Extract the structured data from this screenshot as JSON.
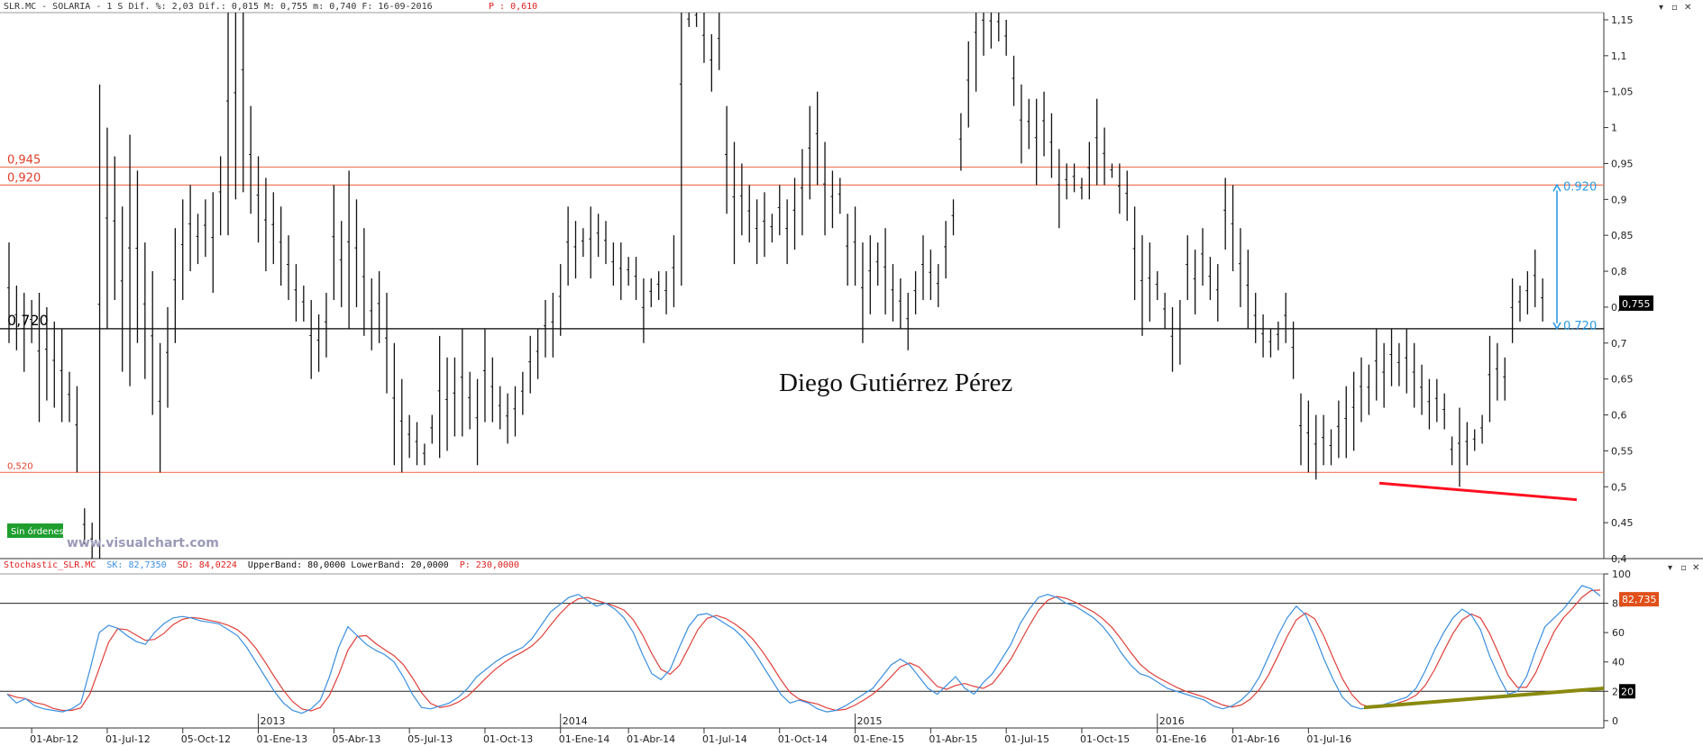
{
  "header": {
    "price_info": "SLR.MC - SOLARIA -  1 S Dif. %: 2,03 Dif.: 0,015 M: 0,755 m: 0,740 F: 16-09-2016",
    "p_value": "P : 0,610"
  },
  "stoch_header": {
    "name": "Stochastic_SLR.MC",
    "sk": "SK: 82,7350",
    "sd": "SD: 84,0224",
    "bands": "UpperBand: 80,0000 LowerBand: 20,0000",
    "p": "P: 230,0000"
  },
  "watermark": "Diego Gutiérrez Pérez",
  "brand": "www.visualchart.com",
  "badge": "Sin órdenes",
  "colors": {
    "candle": "#111111",
    "hline_orange": "#f07a5a",
    "hline_black": "#000000",
    "arrow_blue": "#2b9be6",
    "divergence_red": "#ff1020",
    "divergence_olive": "#8a8a10",
    "sk_line": "#3a8fe0",
    "sd_line": "#e0403a",
    "badge_bg": "#1f9e2f",
    "price_tag_bg": "#000000",
    "stoch_tag_bg": "#e0501a"
  },
  "chart_data": [
    {
      "type": "ohlc",
      "ylim": [
        0.4,
        1.16
      ],
      "yticks": [
        "1,15",
        "1,1",
        "1,05",
        "1",
        "0,95",
        "0,9",
        "0,85",
        "0,8",
        "0,75",
        "0,7",
        "0,65",
        "0,6",
        "0,55",
        "0,5",
        "0,45",
        "0,4"
      ],
      "ytick_values": [
        1.15,
        1.1,
        1.05,
        1.0,
        0.95,
        0.9,
        0.85,
        0.8,
        0.75,
        0.7,
        0.65,
        0.6,
        0.55,
        0.5,
        0.45,
        0.4
      ],
      "last_price_label": "0,755",
      "last_price": 0.755,
      "levels": [
        {
          "label": "0,945",
          "value": 0.945,
          "color": "orange"
        },
        {
          "label": "0,920",
          "value": 0.92,
          "color": "orange"
        },
        {
          "label": "0,720",
          "value": 0.72,
          "color": "black"
        },
        {
          "label": "0,520",
          "value": 0.52,
          "color": "orange"
        }
      ],
      "arrow": {
        "from": 0.72,
        "to": 0.92,
        "label_top": "0.920",
        "label_bottom": "0.720"
      },
      "divergence": {
        "from": 0.505,
        "to": 0.482
      },
      "year_labels": [
        {
          "label": "2013",
          "index": 33
        },
        {
          "label": "2014",
          "index": 73
        },
        {
          "label": "2015",
          "index": 112
        },
        {
          "label": "2016",
          "index": 152
        }
      ],
      "xticks": [
        {
          "label": "01-Abr-12",
          "index": 3
        },
        {
          "label": "01-Jul-12",
          "index": 13
        },
        {
          "label": "05-Oct-12",
          "index": 23
        },
        {
          "label": "01-Ene-13",
          "index": 33
        },
        {
          "label": "05-Abr-13",
          "index": 43
        },
        {
          "label": "05-Jul-13",
          "index": 53
        },
        {
          "label": "01-Oct-13",
          "index": 63
        },
        {
          "label": "01-Ene-14",
          "index": 73
        },
        {
          "label": "01-Abr-14",
          "index": 82
        },
        {
          "label": "01-Jul-14",
          "index": 92
        },
        {
          "label": "01-Oct-14",
          "index": 102
        },
        {
          "label": "01-Ene-15",
          "index": 112
        },
        {
          "label": "01-Abr-15",
          "index": 122
        },
        {
          "label": "01-Jul-15",
          "index": 132
        },
        {
          "label": "01-Oct-15",
          "index": 142
        },
        {
          "label": "01-Ene-16",
          "index": 152
        },
        {
          "label": "01-Abr-16",
          "index": 162
        },
        {
          "label": "01-Jul-16",
          "index": 172
        }
      ],
      "bars": [
        [
          0.84,
          0.7
        ],
        [
          0.78,
          0.69
        ],
        [
          0.77,
          0.66
        ],
        [
          0.76,
          0.7
        ],
        [
          0.77,
          0.59
        ],
        [
          0.75,
          0.62
        ],
        [
          0.73,
          0.61
        ],
        [
          0.72,
          0.59
        ],
        [
          0.66,
          0.59
        ],
        [
          0.64,
          0.52
        ],
        [
          0.47,
          0.42
        ],
        [
          0.45,
          0.4
        ],
        [
          1.06,
          0.38
        ],
        [
          1.0,
          0.72
        ],
        [
          0.96,
          0.76
        ],
        [
          0.89,
          0.66
        ],
        [
          0.99,
          0.64
        ],
        [
          0.94,
          0.7
        ],
        [
          0.84,
          0.65
        ],
        [
          0.8,
          0.6
        ],
        [
          0.7,
          0.52
        ],
        [
          0.75,
          0.61
        ],
        [
          0.86,
          0.7
        ],
        [
          0.9,
          0.76
        ],
        [
          0.92,
          0.8
        ],
        [
          0.88,
          0.81
        ],
        [
          0.9,
          0.82
        ],
        [
          0.91,
          0.77
        ],
        [
          0.96,
          0.85
        ],
        [
          1.19,
          0.85
        ],
        [
          1.17,
          0.9
        ],
        [
          1.22,
          0.91
        ],
        [
          1.03,
          0.88
        ],
        [
          0.96,
          0.84
        ],
        [
          0.93,
          0.8
        ],
        [
          0.91,
          0.81
        ],
        [
          0.89,
          0.78
        ],
        [
          0.85,
          0.76
        ],
        [
          0.81,
          0.73
        ],
        [
          0.78,
          0.73
        ],
        [
          0.76,
          0.65
        ],
        [
          0.74,
          0.66
        ],
        [
          0.77,
          0.68
        ],
        [
          0.92,
          0.76
        ],
        [
          0.87,
          0.75
        ],
        [
          0.94,
          0.72
        ],
        [
          0.9,
          0.75
        ],
        [
          0.86,
          0.71
        ],
        [
          0.79,
          0.69
        ],
        [
          0.8,
          0.7
        ],
        [
          0.77,
          0.63
        ],
        [
          0.7,
          0.53
        ],
        [
          0.65,
          0.52
        ],
        [
          0.6,
          0.54
        ],
        [
          0.59,
          0.53
        ],
        [
          0.56,
          0.53
        ],
        [
          0.6,
          0.56
        ],
        [
          0.71,
          0.54
        ],
        [
          0.68,
          0.55
        ],
        [
          0.68,
          0.57
        ],
        [
          0.72,
          0.57
        ],
        [
          0.66,
          0.58
        ],
        [
          0.65,
          0.53
        ],
        [
          0.72,
          0.59
        ],
        [
          0.68,
          0.59
        ],
        [
          0.64,
          0.58
        ],
        [
          0.63,
          0.56
        ],
        [
          0.64,
          0.57
        ],
        [
          0.66,
          0.6
        ],
        [
          0.71,
          0.63
        ],
        [
          0.72,
          0.65
        ],
        [
          0.76,
          0.68
        ],
        [
          0.77,
          0.68
        ],
        [
          0.81,
          0.71
        ],
        [
          0.89,
          0.78
        ],
        [
          0.87,
          0.79
        ],
        [
          0.86,
          0.82
        ],
        [
          0.89,
          0.79
        ],
        [
          0.88,
          0.82
        ],
        [
          0.87,
          0.81
        ],
        [
          0.84,
          0.78
        ],
        [
          0.84,
          0.76
        ],
        [
          0.82,
          0.78
        ],
        [
          0.82,
          0.76
        ],
        [
          0.79,
          0.7
        ],
        [
          0.79,
          0.75
        ],
        [
          0.8,
          0.76
        ],
        [
          0.8,
          0.74
        ],
        [
          0.85,
          0.75
        ],
        [
          1.29,
          0.78
        ]
      ],
      "bars2": [
        [
          1.16,
          1.14
        ],
        [
          1.17,
          1.14
        ],
        [
          1.16,
          1.09
        ],
        [
          1.13,
          1.05
        ],
        [
          1.16,
          1.08
        ],
        [
          1.03,
          0.88
        ],
        [
          0.98,
          0.81
        ],
        [
          0.95,
          0.85
        ],
        [
          0.92,
          0.84
        ],
        [
          0.9,
          0.81
        ],
        [
          0.91,
          0.82
        ],
        [
          0.88,
          0.84
        ],
        [
          0.92,
          0.85
        ],
        [
          0.9,
          0.81
        ],
        [
          0.93,
          0.83
        ],
        [
          0.97,
          0.85
        ],
        [
          1.03,
          0.9
        ],
        [
          1.05,
          0.92
        ],
        [
          0.98,
          0.85
        ],
        [
          0.94,
          0.86
        ],
        [
          0.93,
          0.88
        ],
        [
          0.88,
          0.78
        ],
        [
          0.89,
          0.78
        ],
        [
          0.84,
          0.7
        ],
        [
          0.85,
          0.74
        ],
        [
          0.84,
          0.78
        ],
        [
          0.86,
          0.74
        ],
        [
          0.81,
          0.73
        ],
        [
          0.79,
          0.72
        ],
        [
          0.77,
          0.69
        ],
        [
          0.8,
          0.74
        ],
        [
          0.85,
          0.76
        ],
        [
          0.83,
          0.76
        ],
        [
          0.81,
          0.75
        ],
        [
          0.87,
          0.79
        ],
        [
          0.9,
          0.85
        ],
        [
          1.02,
          0.94
        ],
        [
          1.12,
          1.0
        ],
        [
          1.2,
          1.05
        ],
        [
          1.19,
          1.1
        ],
        [
          1.18,
          1.11
        ],
        [
          1.17,
          1.12
        ],
        [
          1.15,
          1.1
        ],
        [
          1.1,
          1.03
        ],
        [
          1.06,
          0.95
        ],
        [
          1.04,
          0.97
        ],
        [
          1.04,
          0.92
        ],
        [
          1.05,
          0.96
        ],
        [
          1.02,
          0.93
        ],
        [
          0.97,
          0.86
        ],
        [
          0.95,
          0.9
        ],
        [
          0.95,
          0.91
        ],
        [
          0.93,
          0.9
        ],
        [
          0.98,
          0.9
        ],
        [
          1.04,
          0.92
        ],
        [
          1.0,
          0.92
        ],
        [
          0.95,
          0.93
        ],
        [
          0.95,
          0.88
        ],
        [
          0.94,
          0.87
        ],
        [
          0.89,
          0.76
        ],
        [
          0.85,
          0.71
        ],
        [
          0.84,
          0.73
        ],
        [
          0.8,
          0.76
        ],
        [
          0.77,
          0.72
        ],
        [
          0.75,
          0.66
        ],
        [
          0.76,
          0.67
        ],
        [
          0.85,
          0.76
        ],
        [
          0.83,
          0.74
        ],
        [
          0.86,
          0.78
        ],
        [
          0.82,
          0.76
        ],
        [
          0.81,
          0.73
        ],
        [
          0.93,
          0.83
        ],
        [
          0.92,
          0.8
        ],
        [
          0.86,
          0.75
        ],
        [
          0.83,
          0.72
        ],
        [
          0.77,
          0.7
        ],
        [
          0.74,
          0.68
        ],
        [
          0.72,
          0.68
        ],
        [
          0.73,
          0.69
        ],
        [
          0.77,
          0.7
        ],
        [
          0.73,
          0.65
        ],
        [
          0.63,
          0.53
        ],
        [
          0.62,
          0.52
        ],
        [
          0.6,
          0.51
        ],
        [
          0.6,
          0.53
        ],
        [
          0.58,
          0.53
        ],
        [
          0.62,
          0.54
        ],
        [
          0.64,
          0.54
        ],
        [
          0.66,
          0.55
        ],
        [
          0.68,
          0.59
        ],
        [
          0.67,
          0.6
        ],
        [
          0.72,
          0.62
        ],
        [
          0.7,
          0.61
        ],
        [
          0.72,
          0.64
        ],
        [
          0.7,
          0.64
        ],
        [
          0.72,
          0.63
        ],
        [
          0.7,
          0.61
        ],
        [
          0.67,
          0.6
        ],
        [
          0.65,
          0.58
        ],
        [
          0.65,
          0.59
        ],
        [
          0.63,
          0.58
        ],
        [
          0.57,
          0.53
        ],
        [
          0.61,
          0.5
        ],
        [
          0.59,
          0.53
        ],
        [
          0.58,
          0.55
        ],
        [
          0.6,
          0.56
        ],
        [
          0.71,
          0.59
        ],
        [
          0.7,
          0.62
        ],
        [
          0.68,
          0.62
        ],
        [
          0.79,
          0.7
        ],
        [
          0.78,
          0.73
        ],
        [
          0.8,
          0.74
        ],
        [
          0.83,
          0.75
        ],
        [
          0.79,
          0.73
        ]
      ],
      "bar_gap_indices": [
        90,
        99
      ]
    },
    {
      "type": "line",
      "name": "Stochastic",
      "ylim": [
        -5,
        100
      ],
      "yticks": [
        "100",
        "80",
        "60",
        "40",
        "20",
        "0"
      ],
      "ytick_values": [
        100,
        80,
        60,
        40,
        20,
        0
      ],
      "bands": [
        80,
        20
      ],
      "last_label": "82,735",
      "band_label": "20",
      "divergence": {
        "from": 9,
        "to": 22
      },
      "sk": [
        18,
        12,
        15,
        10,
        8,
        7,
        6,
        8,
        12,
        35,
        60,
        65,
        63,
        58,
        54,
        52,
        60,
        66,
        70,
        71,
        70,
        68,
        67,
        66,
        62,
        58,
        50,
        40,
        30,
        20,
        12,
        7,
        5,
        8,
        14,
        30,
        50,
        64,
        58,
        52,
        48,
        45,
        40,
        30,
        18,
        9,
        8,
        10,
        12,
        16,
        22,
        30,
        35,
        40,
        44,
        47,
        50,
        56,
        65,
        74,
        79,
        84,
        86,
        82,
        78,
        80,
        76,
        70,
        60,
        45,
        32,
        28,
        35,
        50,
        64,
        72,
        73,
        70,
        66,
        62,
        56,
        48,
        38,
        28,
        18,
        12,
        14,
        12,
        8,
        6,
        7,
        10,
        14,
        18,
        22,
        30,
        38,
        42,
        38,
        30,
        22,
        18,
        24,
        30,
        22,
        18,
        26,
        32,
        42,
        52,
        66,
        76,
        84,
        86,
        84,
        80,
        78,
        74,
        70,
        64,
        56,
        46,
        38,
        32,
        30,
        26,
        22,
        20,
        18,
        16,
        14,
        10,
        8,
        10,
        14,
        20,
        30,
        44,
        58,
        70,
        78,
        72,
        58,
        42,
        28,
        16,
        10,
        8,
        9,
        10,
        12,
        14,
        16,
        22,
        34,
        48,
        60,
        70,
        76,
        72,
        62,
        44,
        30,
        18,
        20,
        30,
        48,
        64,
        70,
        76,
        84,
        92,
        90,
        85
      ]
    }
  ]
}
